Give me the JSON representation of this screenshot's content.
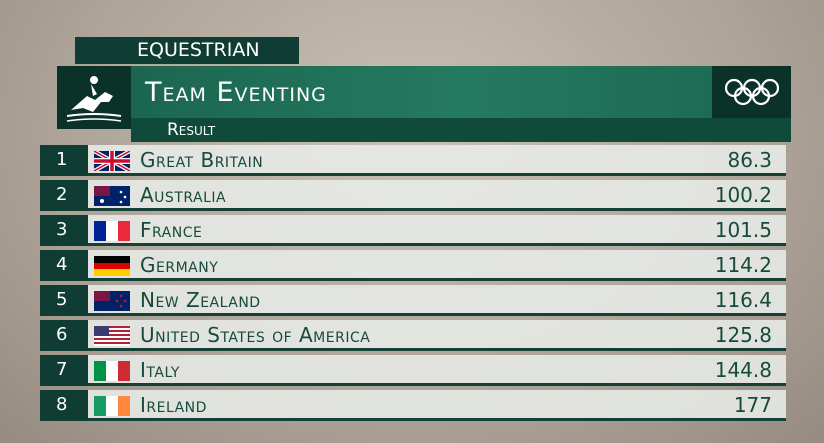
{
  "header": {
    "sport": "EQUESTRIAN",
    "title": "Team Eventing",
    "subtitle": "Result"
  },
  "table": {
    "rows": [
      [
        1,
        "Great Britain",
        86.3
      ],
      [
        2,
        "Australia",
        100.2
      ],
      [
        3,
        "France",
        101.5
      ],
      [
        4,
        "Germany",
        114.2
      ],
      [
        5,
        "New Zealand",
        116.4
      ],
      [
        6,
        "United States of America",
        125.8
      ],
      [
        7,
        "Italy",
        144.8
      ],
      [
        8,
        "Ireland",
        177
      ]
    ]
  }
}
